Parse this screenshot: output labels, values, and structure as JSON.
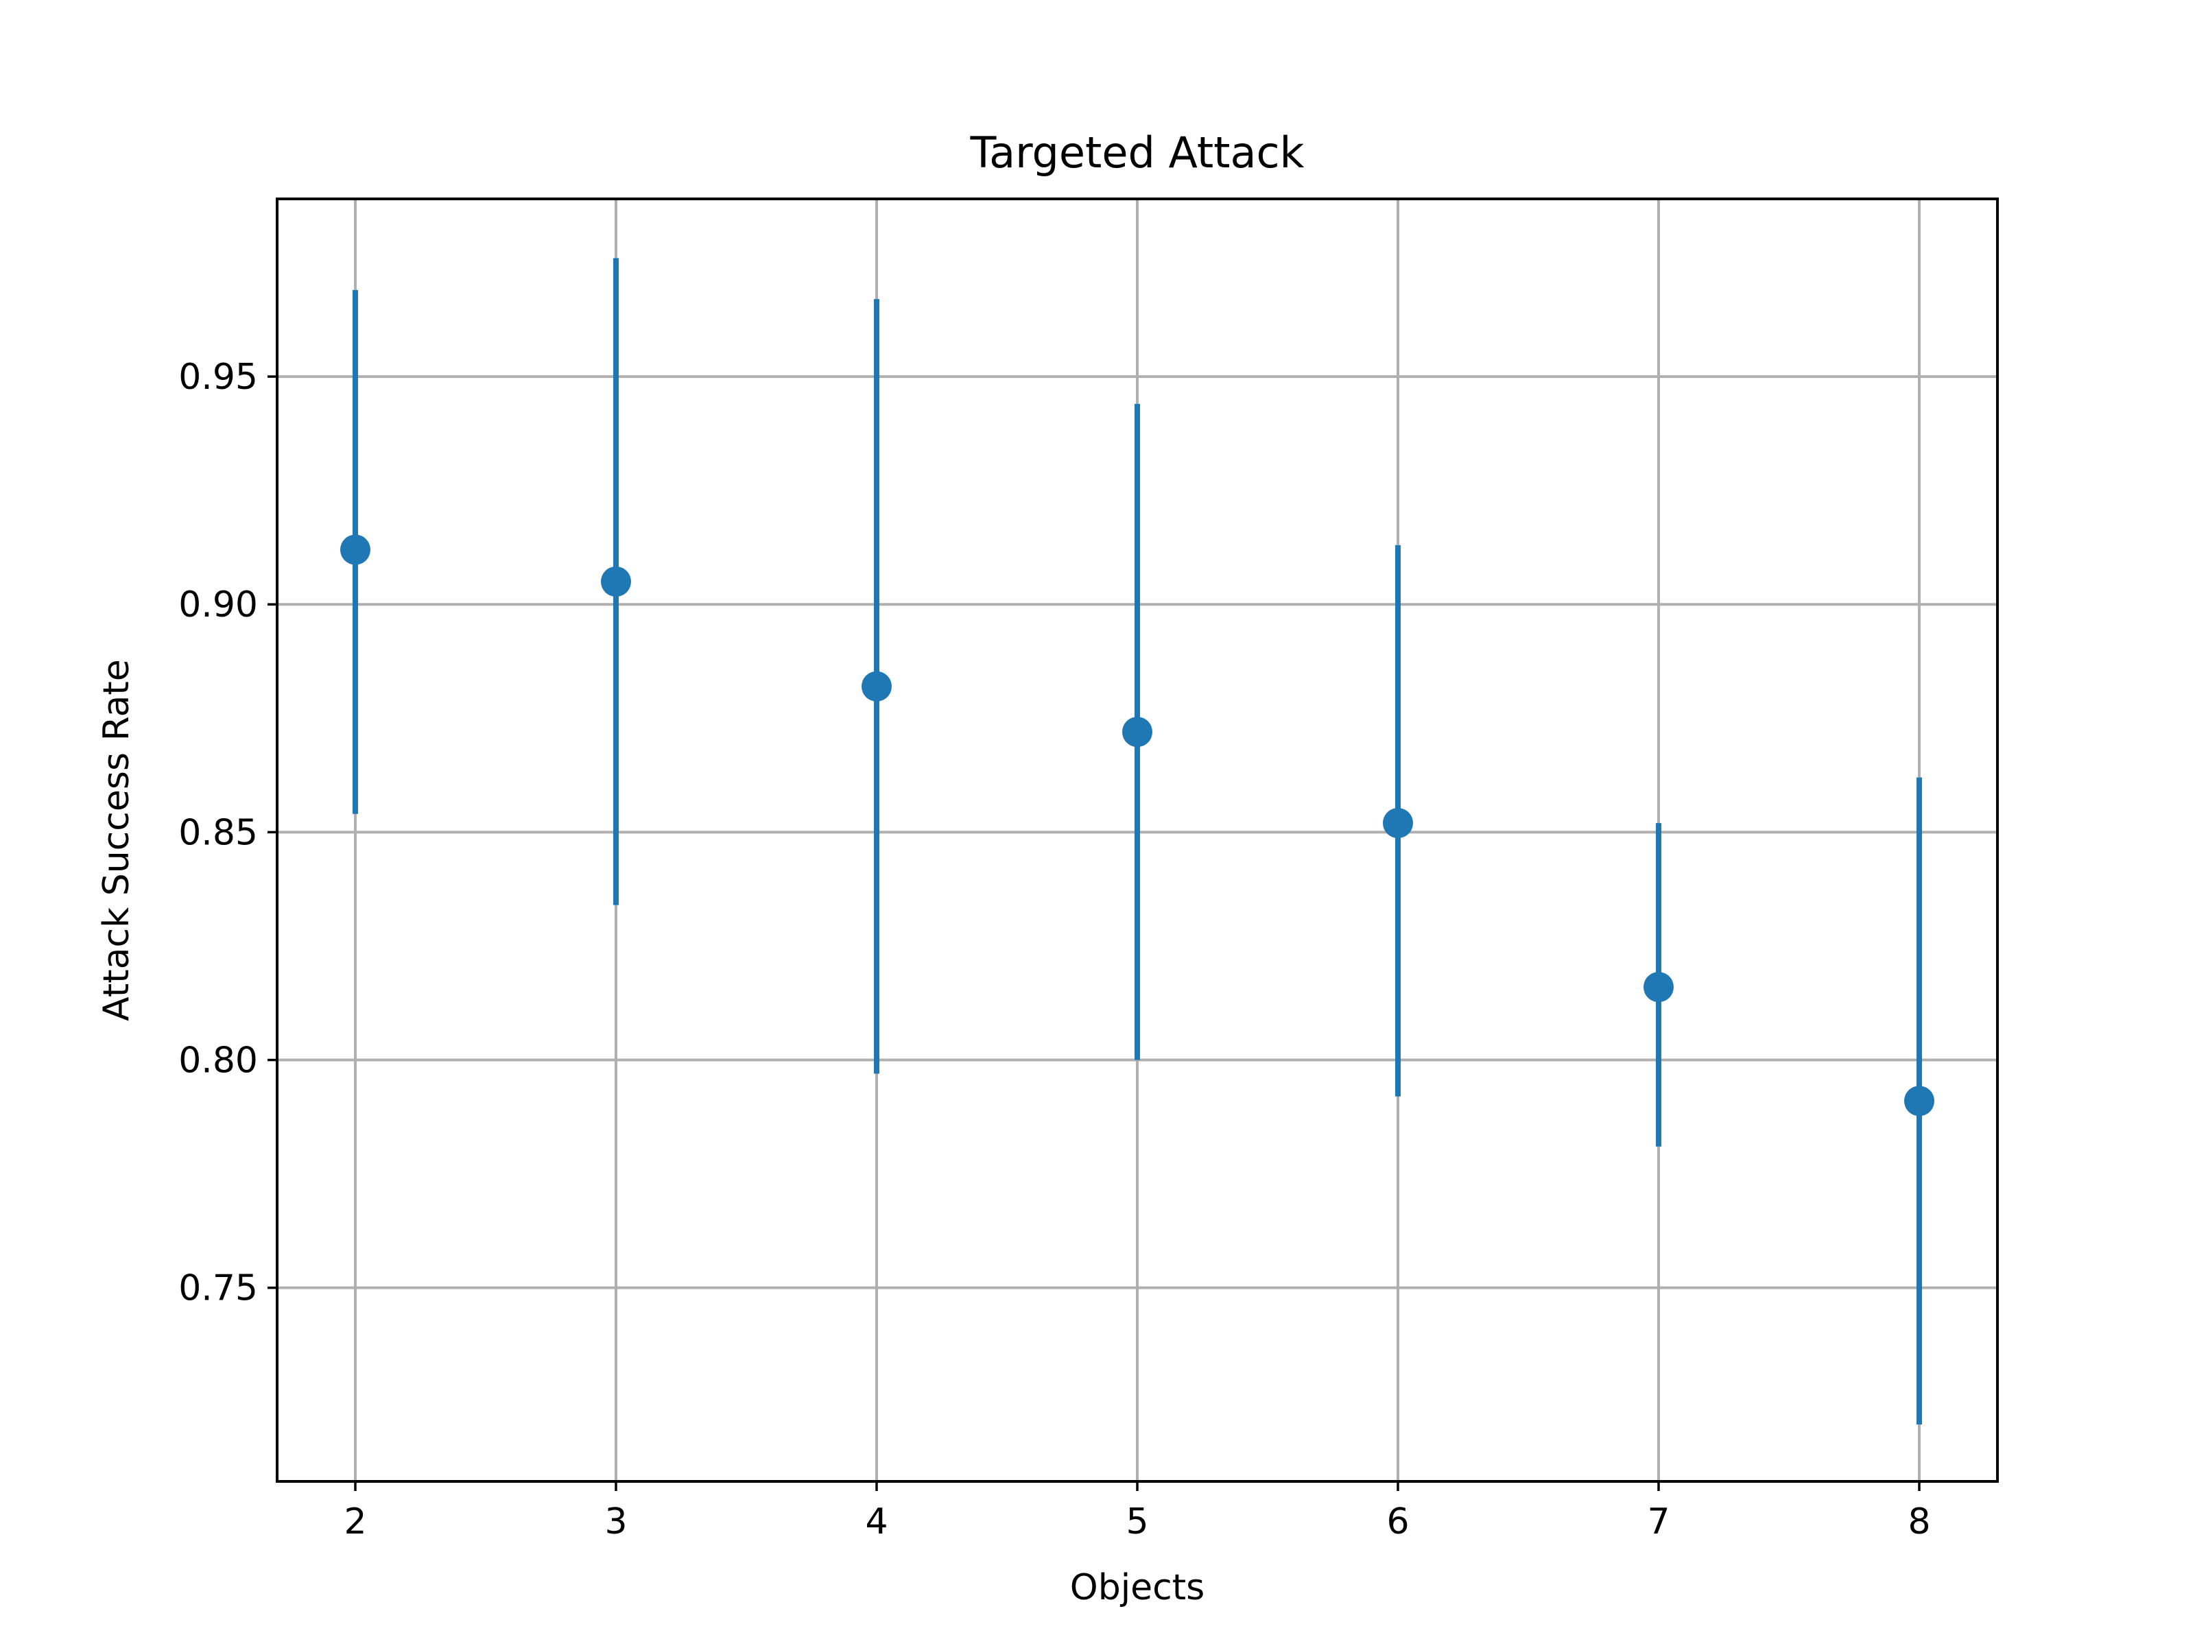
{
  "chart_data": {
    "type": "scatter",
    "title": "Targeted Attack",
    "xlabel": "Objects",
    "ylabel": "Attack Success Rate",
    "x": [
      2,
      3,
      4,
      5,
      6,
      7,
      8
    ],
    "xticks": [
      "2",
      "3",
      "4",
      "5",
      "6",
      "7",
      "8"
    ],
    "yticks": [
      "0.75",
      "0.80",
      "0.85",
      "0.90",
      "0.95"
    ],
    "xlim": [
      1.7,
      8.3
    ],
    "ylim": [
      0.7075,
      0.989
    ],
    "grid": true,
    "series": [
      {
        "values": [
          0.912,
          0.905,
          0.882,
          0.872,
          0.852,
          0.816,
          0.791
        ],
        "error_low": [
          0.854,
          0.834,
          0.797,
          0.8,
          0.792,
          0.781,
          0.72
        ],
        "error_high": [
          0.969,
          0.976,
          0.967,
          0.944,
          0.913,
          0.852,
          0.862
        ]
      }
    ]
  },
  "colors": {
    "series": "#1f77b4",
    "grid": "#b0b0b0",
    "axes": "#000000"
  }
}
